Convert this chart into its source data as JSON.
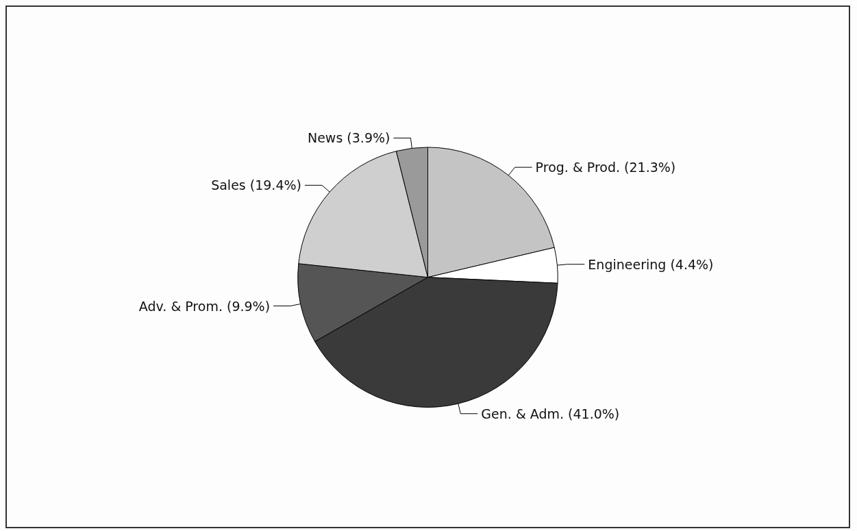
{
  "chart_data": {
    "type": "pie",
    "categories": [
      "Prog. & Prod.",
      "Engineering",
      "Gen. & Adm.",
      "Adv. & Prom.",
      "Sales",
      "News"
    ],
    "values": [
      21.3,
      4.4,
      41.0,
      9.9,
      19.4,
      3.9
    ],
    "value_labels": [
      "(21.3%)",
      "(4.4%)",
      "(41.0%)",
      "(9.9%)",
      "(19.4%)",
      "(3.9%)"
    ],
    "colors": [
      "#c4c4c4",
      "#ffffff",
      "#3a3a3a",
      "#555555",
      "#cfcfcf",
      "#9a9a9a"
    ],
    "legend": false
  }
}
